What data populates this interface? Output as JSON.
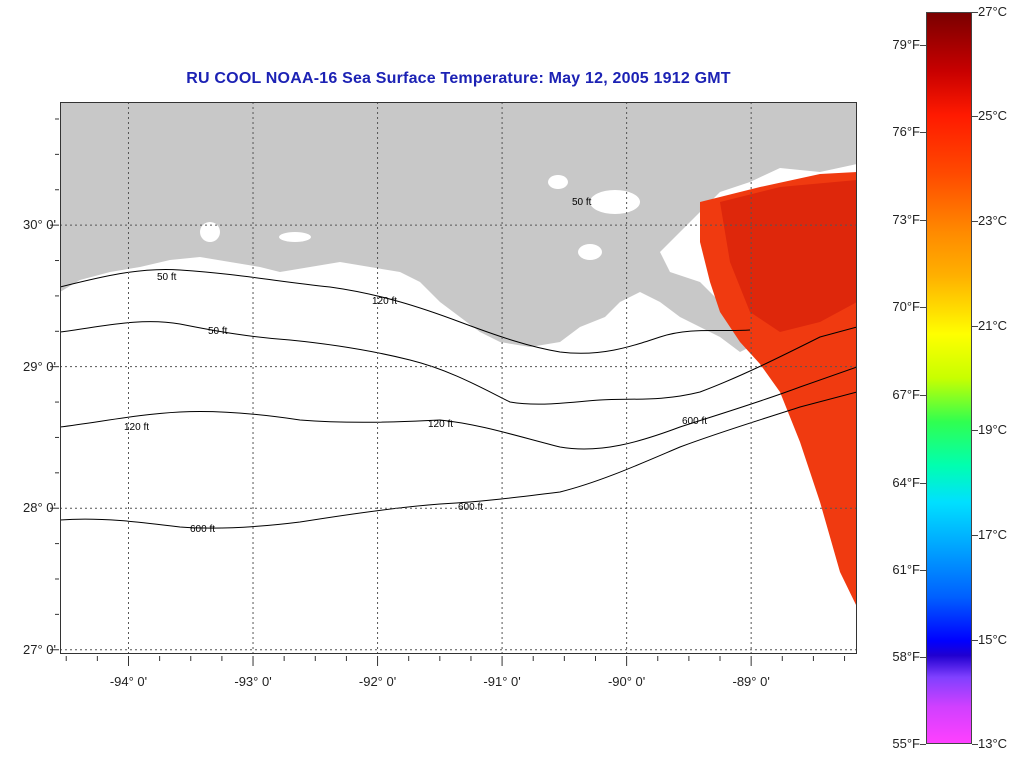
{
  "title": "RU COOL  NOAA-16  Sea Surface Temperature:  May 12, 2005 1912 GMT",
  "map": {
    "lat_range": [
      26.97,
      30.87
    ],
    "lon_range": [
      -94.55,
      -88.15
    ],
    "lat_labels": [
      {
        "value": 30.0,
        "label": "30° 0'"
      },
      {
        "value": 29.0,
        "label": "29° 0'"
      },
      {
        "value": 28.0,
        "label": "28° 0'"
      },
      {
        "value": 27.0,
        "label": "27° 0'"
      }
    ],
    "lon_labels": [
      {
        "value": -94.0,
        "label": "-94° 0'"
      },
      {
        "value": -93.0,
        "label": "-93° 0'"
      },
      {
        "value": -92.0,
        "label": "-92° 0'"
      },
      {
        "value": -91.0,
        "label": "-91° 0'"
      },
      {
        "value": -90.0,
        "label": "-90° 0'"
      },
      {
        "value": -89.0,
        "label": "-89° 0'"
      }
    ],
    "land_color": "#c8c8c8",
    "water_color": "#ffffff",
    "sst_color": "#f03a10",
    "contour_labels": [
      "50 ft",
      "120 ft",
      "600 ft"
    ]
  },
  "colorbar": {
    "fahrenheit": [
      "79°F",
      "76°F",
      "73°F",
      "70°F",
      "67°F",
      "64°F",
      "61°F",
      "58°F",
      "55°F"
    ],
    "celsius": [
      "27°C",
      "25°C",
      "23°C",
      "21°C",
      "19°C",
      "17°C",
      "15°C",
      "13°C"
    ]
  }
}
